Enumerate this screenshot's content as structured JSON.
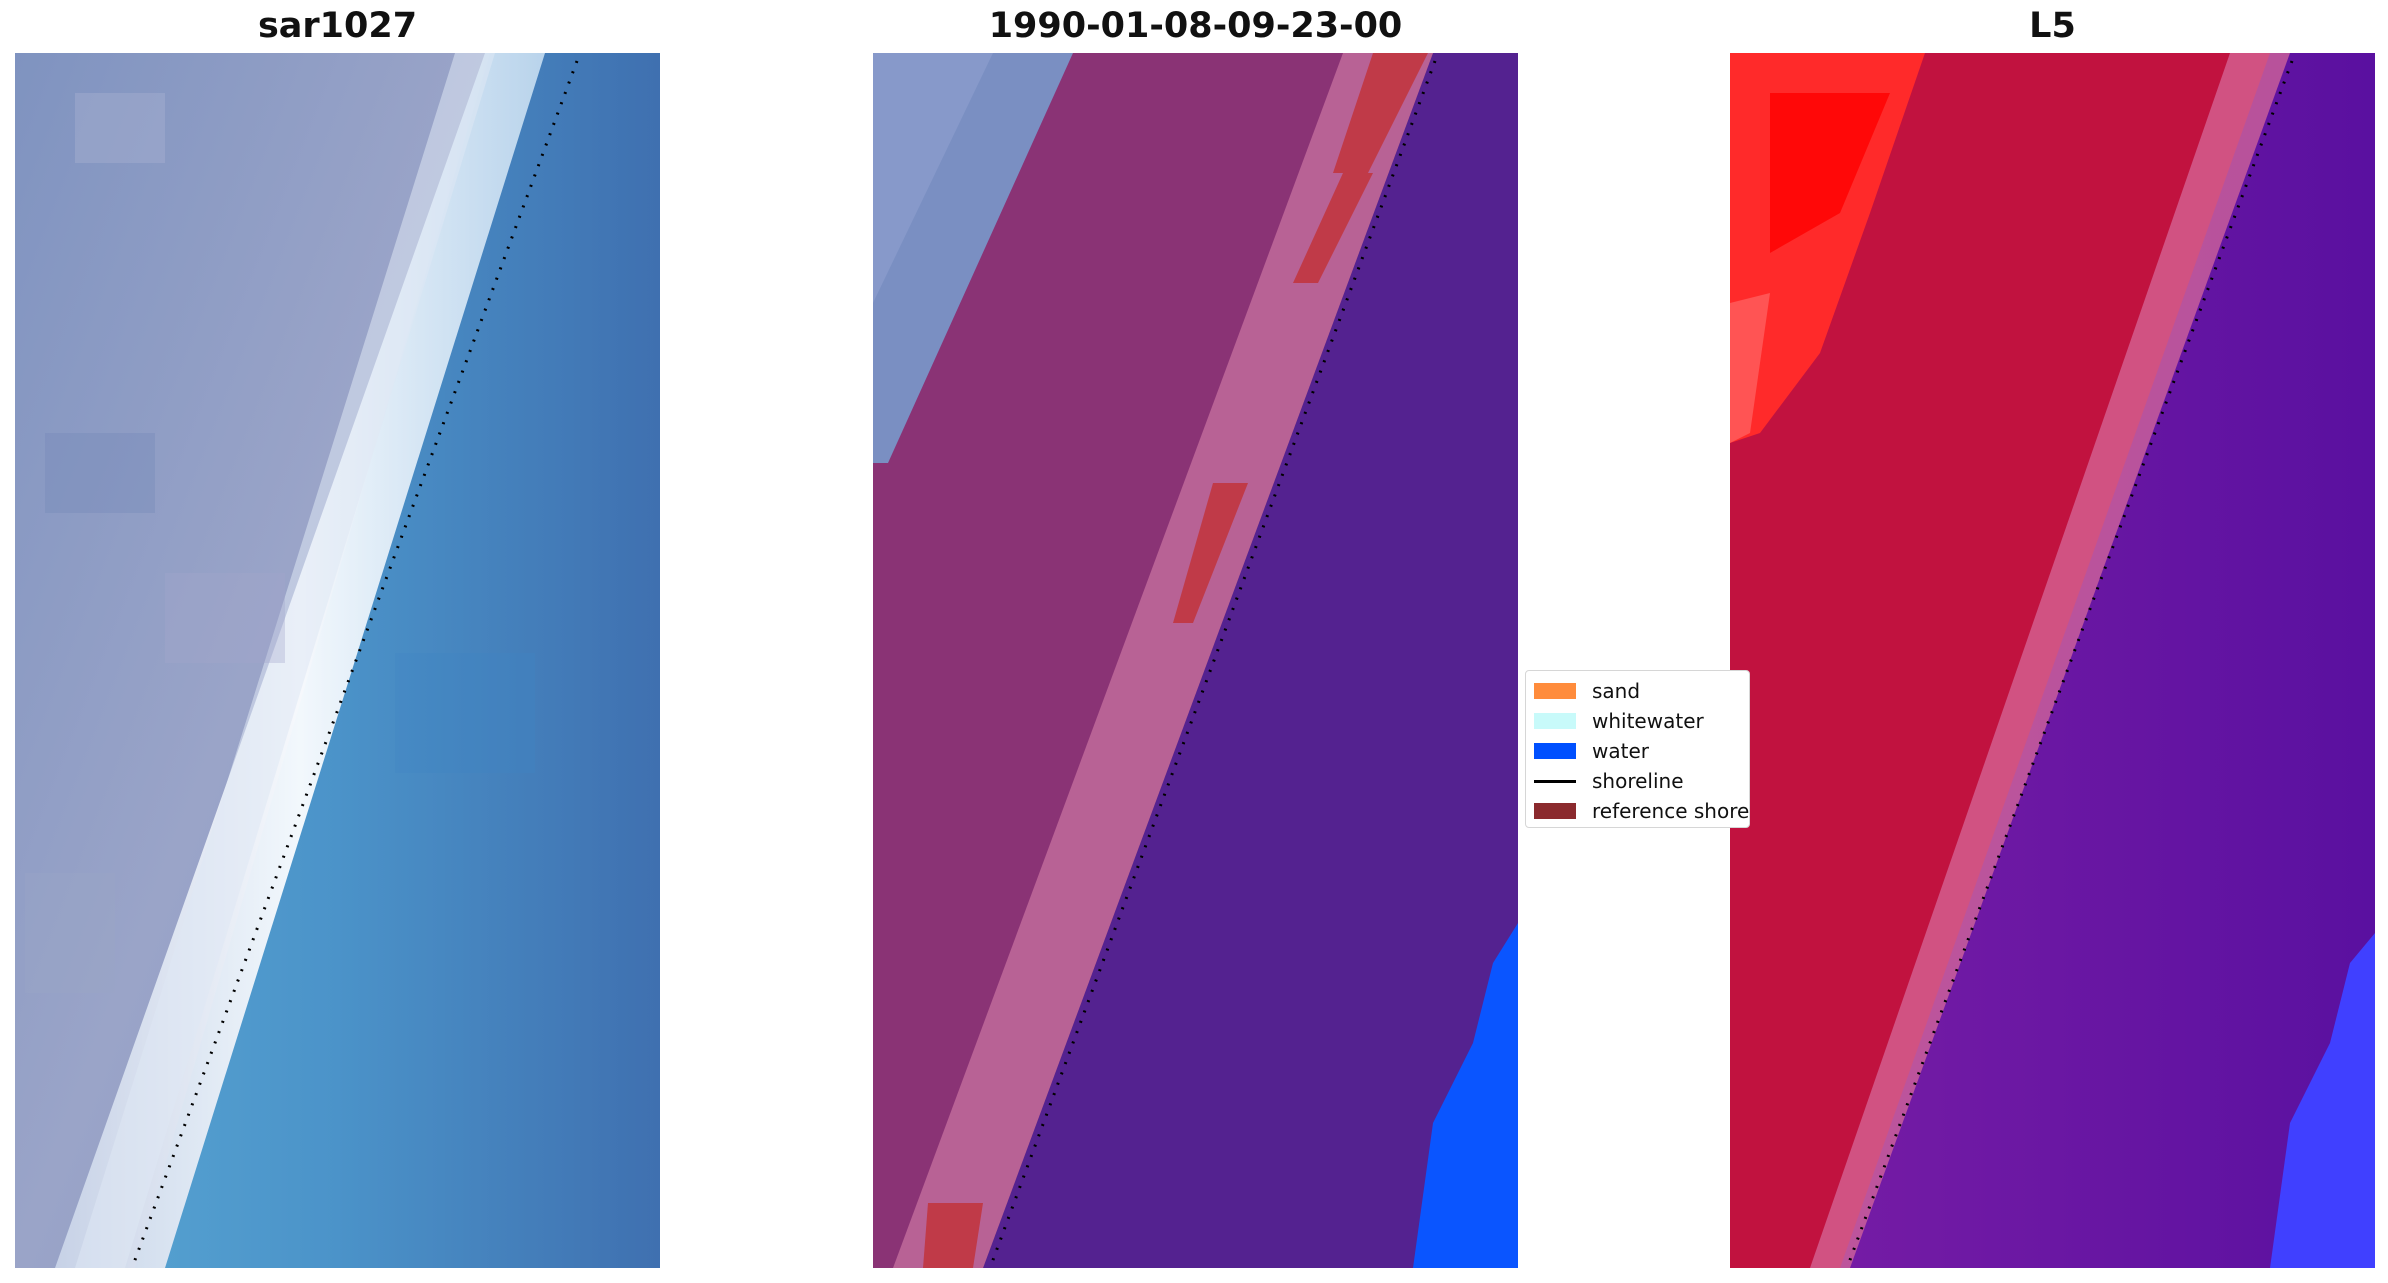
{
  "panels": [
    {
      "title": "sar1027"
    },
    {
      "title": "1990-01-08-09-23-00"
    },
    {
      "title": "L5"
    }
  ],
  "legend": {
    "items": [
      {
        "label": "sand",
        "color": "#ff8c3c",
        "kind": "patch"
      },
      {
        "label": "whitewater",
        "color": "#c8fafa",
        "kind": "patch"
      },
      {
        "label": "water",
        "color": "#0050ff",
        "kind": "patch"
      },
      {
        "label": "shoreline",
        "color": "#000000",
        "kind": "line"
      },
      {
        "label": "reference shoreline",
        "color": "#8b2a2e",
        "kind": "patch"
      }
    ]
  },
  "colors": {
    "land_rgb": "#8a98bf",
    "whitewater_rgb": "#f2f7fa",
    "water_rgb": "#4a8ac8",
    "land_class": "#8a3375",
    "wet_band": "#b86295",
    "red_patch": "#c03a48",
    "deep_water_class": "#542290",
    "water_blue": "#0a55ff",
    "ndwi_land": "#c1123f",
    "ndwi_bright": "#ff1a1a",
    "ndwi_water": "#6611a0"
  }
}
